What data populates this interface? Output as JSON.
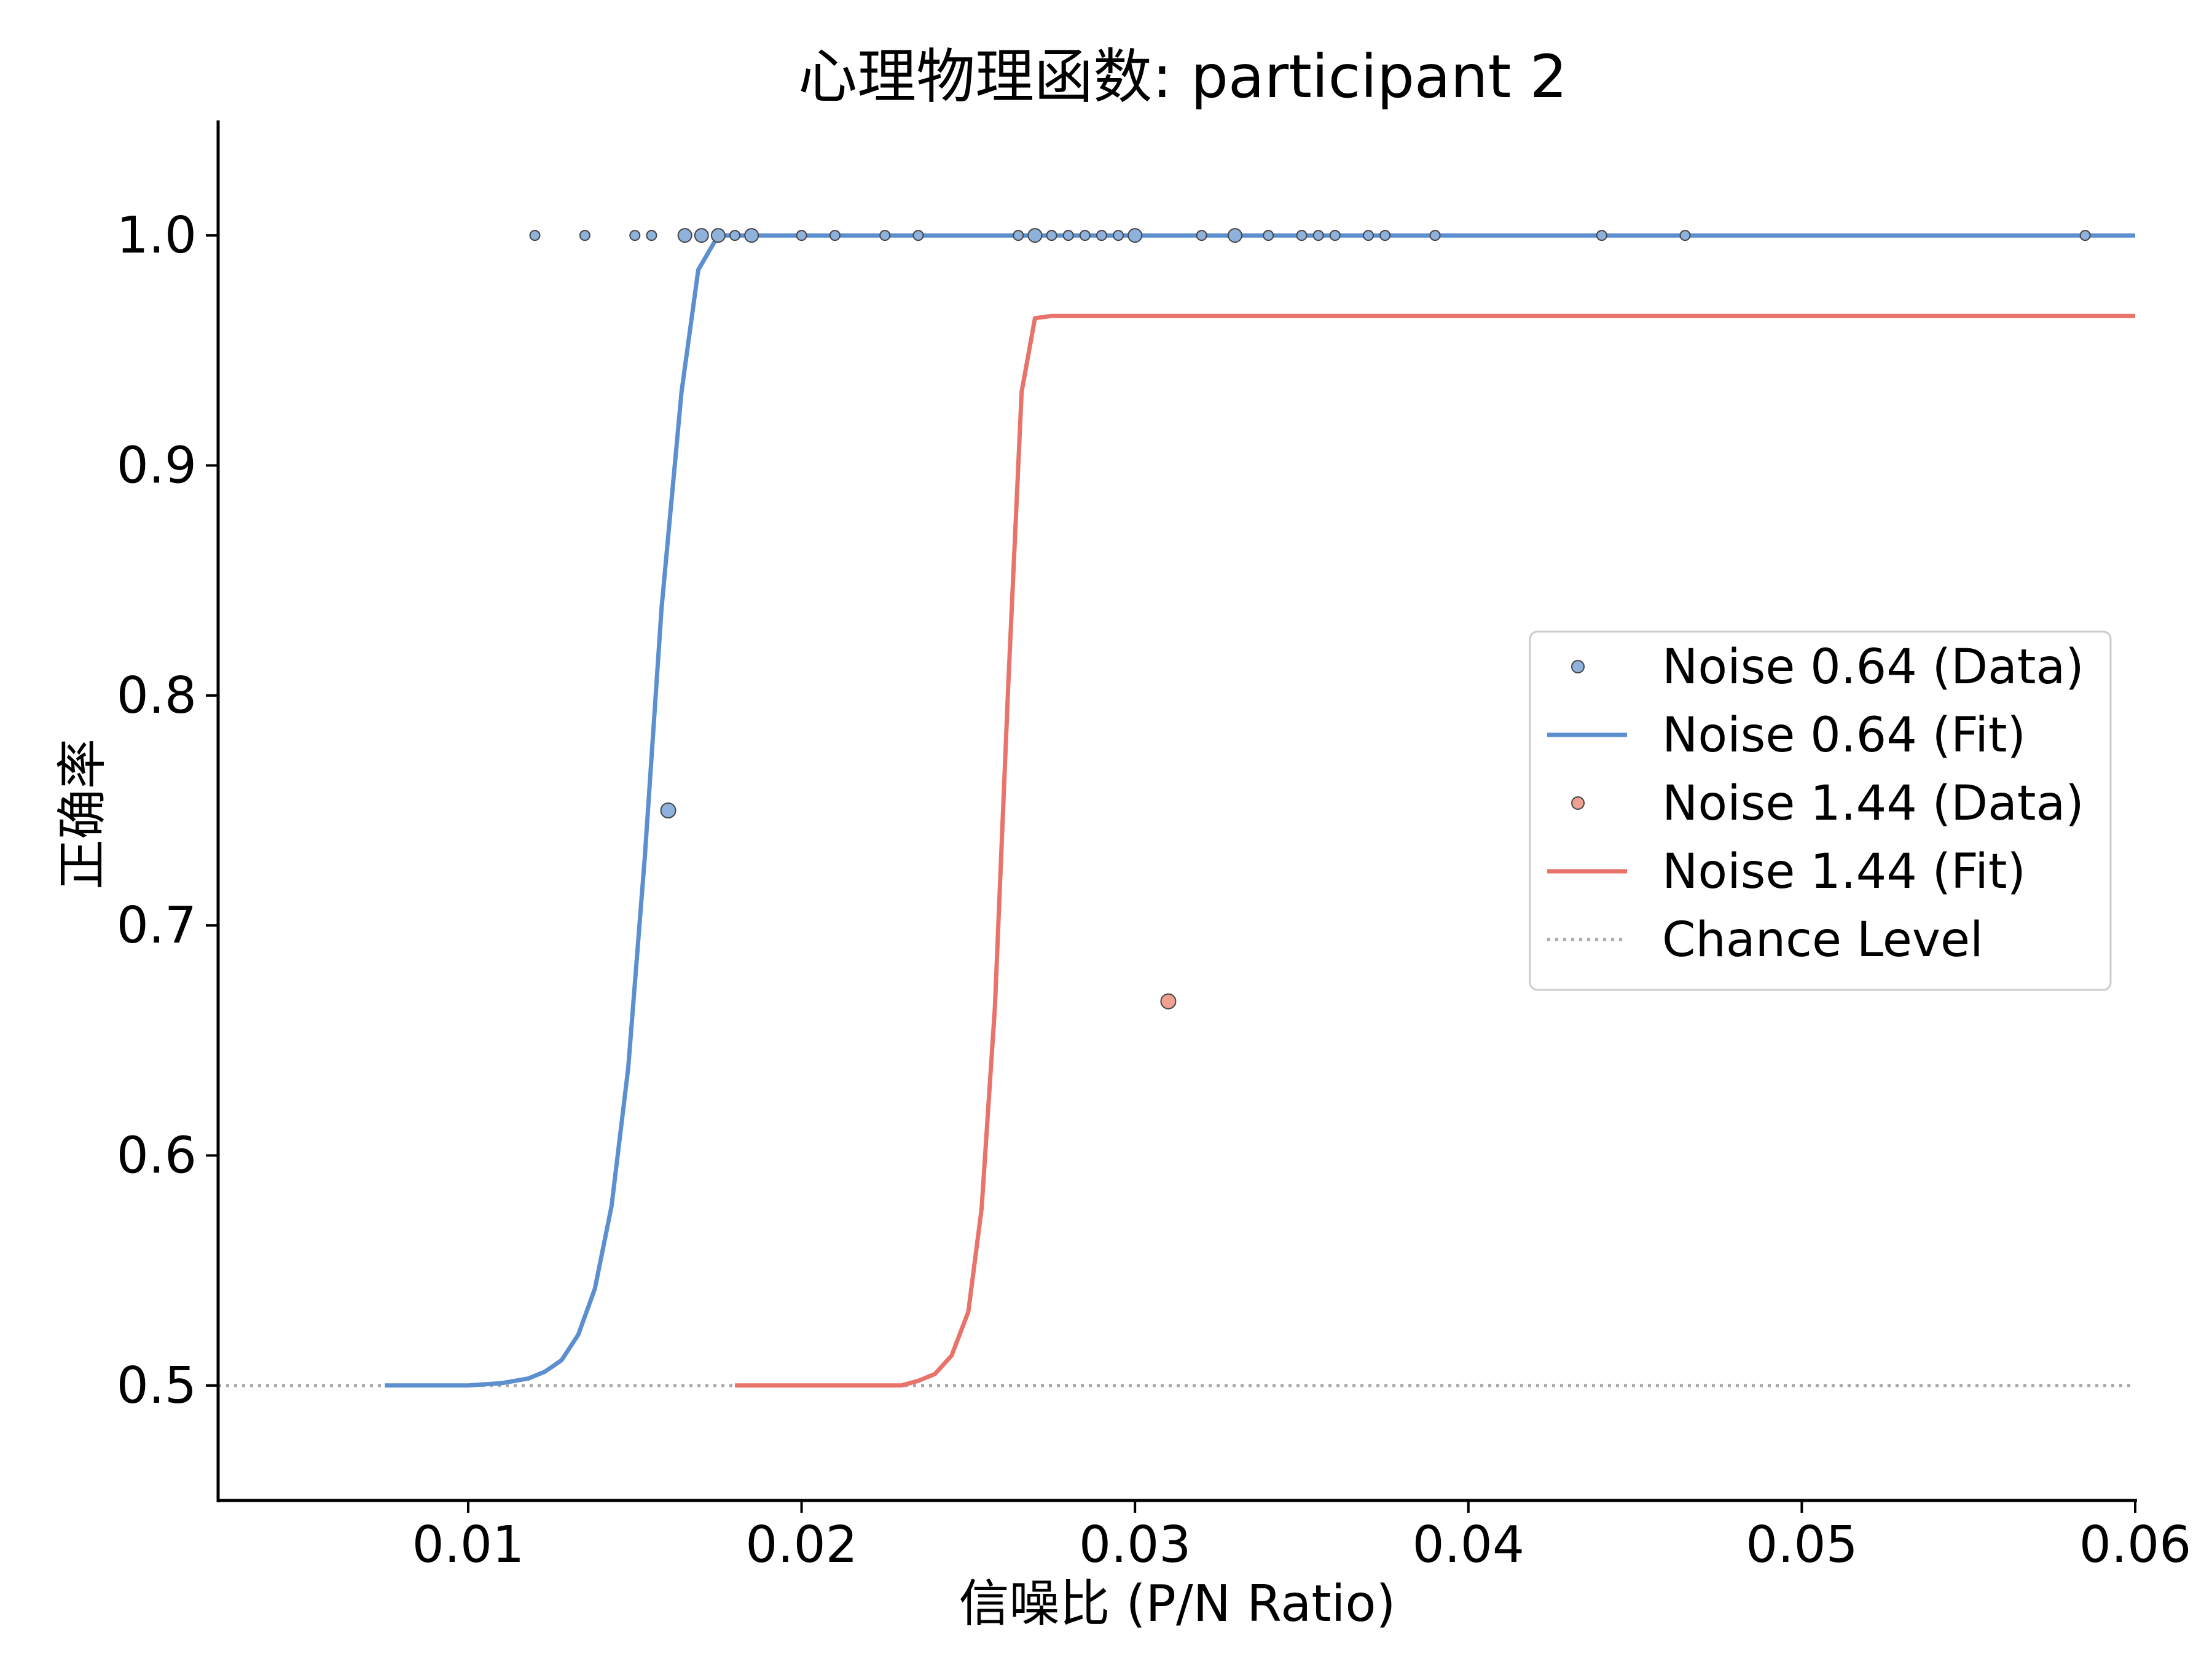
{
  "chart_data": {
    "type": "line",
    "title": "心理物理函数: participant 2",
    "xlabel": "信噪比 (P/N Ratio)",
    "ylabel": "正确率",
    "xlim": [
      0.0025,
      0.06
    ],
    "ylim": [
      0.45,
      1.05
    ],
    "xticks": [
      0.01,
      0.02,
      0.03,
      0.04,
      0.05,
      0.06
    ],
    "xtick_labels": [
      "0.01",
      "0.02",
      "0.03",
      "0.04",
      "0.05",
      "0.06"
    ],
    "yticks": [
      0.5,
      0.6,
      0.7,
      0.8,
      0.9,
      1.0
    ],
    "ytick_labels": [
      "0.5",
      "0.6",
      "0.7",
      "0.8",
      "0.9",
      "1.0"
    ],
    "grid": false,
    "legend_position": "center-right",
    "series": [
      {
        "name": "Noise 0.64 (Data)",
        "kind": "scatter",
        "color": "#8fb2dd",
        "points": [
          {
            "x": 0.012,
            "y": 1.0
          },
          {
            "x": 0.0135,
            "y": 1.0
          },
          {
            "x": 0.015,
            "y": 1.0
          },
          {
            "x": 0.0155,
            "y": 1.0
          },
          {
            "x": 0.016,
            "y": 0.75
          },
          {
            "x": 0.0165,
            "y": 1.0
          },
          {
            "x": 0.017,
            "y": 1.0
          },
          {
            "x": 0.0175,
            "y": 1.0
          },
          {
            "x": 0.018,
            "y": 1.0
          },
          {
            "x": 0.0185,
            "y": 1.0
          },
          {
            "x": 0.02,
            "y": 1.0
          },
          {
            "x": 0.021,
            "y": 1.0
          },
          {
            "x": 0.0225,
            "y": 1.0
          },
          {
            "x": 0.0235,
            "y": 1.0
          },
          {
            "x": 0.0265,
            "y": 1.0
          },
          {
            "x": 0.027,
            "y": 1.0
          },
          {
            "x": 0.0275,
            "y": 1.0
          },
          {
            "x": 0.028,
            "y": 1.0
          },
          {
            "x": 0.0285,
            "y": 1.0
          },
          {
            "x": 0.029,
            "y": 1.0
          },
          {
            "x": 0.0295,
            "y": 1.0
          },
          {
            "x": 0.03,
            "y": 1.0
          },
          {
            "x": 0.032,
            "y": 1.0
          },
          {
            "x": 0.033,
            "y": 1.0
          },
          {
            "x": 0.034,
            "y": 1.0
          },
          {
            "x": 0.035,
            "y": 1.0
          },
          {
            "x": 0.0355,
            "y": 1.0
          },
          {
            "x": 0.036,
            "y": 1.0
          },
          {
            "x": 0.037,
            "y": 1.0
          },
          {
            "x": 0.0375,
            "y": 1.0
          },
          {
            "x": 0.039,
            "y": 1.0
          },
          {
            "x": 0.044,
            "y": 1.0
          },
          {
            "x": 0.0465,
            "y": 1.0
          },
          {
            "x": 0.0585,
            "y": 1.0
          }
        ]
      },
      {
        "name": "Noise 0.64 (Fit)",
        "kind": "line",
        "color": "#5b8fcf",
        "points": [
          {
            "x": 0.0075,
            "y": 0.5
          },
          {
            "x": 0.01,
            "y": 0.5
          },
          {
            "x": 0.011,
            "y": 0.501
          },
          {
            "x": 0.0118,
            "y": 0.503
          },
          {
            "x": 0.0123,
            "y": 0.506
          },
          {
            "x": 0.0128,
            "y": 0.511
          },
          {
            "x": 0.0133,
            "y": 0.522
          },
          {
            "x": 0.0138,
            "y": 0.542
          },
          {
            "x": 0.0143,
            "y": 0.578
          },
          {
            "x": 0.0148,
            "y": 0.638
          },
          {
            "x": 0.0153,
            "y": 0.73
          },
          {
            "x": 0.0158,
            "y": 0.838
          },
          {
            "x": 0.0164,
            "y": 0.932
          },
          {
            "x": 0.0169,
            "y": 0.985
          },
          {
            "x": 0.0175,
            "y": 1.0
          },
          {
            "x": 0.06,
            "y": 1.0
          }
        ]
      },
      {
        "name": "Noise 1.44 (Data)",
        "kind": "scatter",
        "color": "#f0a090",
        "points": [
          {
            "x": 0.031,
            "y": 0.667
          }
        ]
      },
      {
        "name": "Noise 1.44 (Fit)",
        "kind": "line",
        "color": "#e8736a",
        "points": [
          {
            "x": 0.018,
            "y": 0.5
          },
          {
            "x": 0.023,
            "y": 0.5
          },
          {
            "x": 0.0235,
            "y": 0.502
          },
          {
            "x": 0.024,
            "y": 0.505
          },
          {
            "x": 0.0245,
            "y": 0.513
          },
          {
            "x": 0.025,
            "y": 0.532
          },
          {
            "x": 0.0254,
            "y": 0.577
          },
          {
            "x": 0.0258,
            "y": 0.665
          },
          {
            "x": 0.0262,
            "y": 0.805
          },
          {
            "x": 0.0266,
            "y": 0.932
          },
          {
            "x": 0.027,
            "y": 0.964
          },
          {
            "x": 0.0275,
            "y": 0.965
          },
          {
            "x": 0.06,
            "y": 0.965
          }
        ]
      },
      {
        "name": "Chance Level",
        "kind": "hline",
        "style": "dotted",
        "color": "#aaaaaa",
        "y": 0.5
      }
    ]
  }
}
